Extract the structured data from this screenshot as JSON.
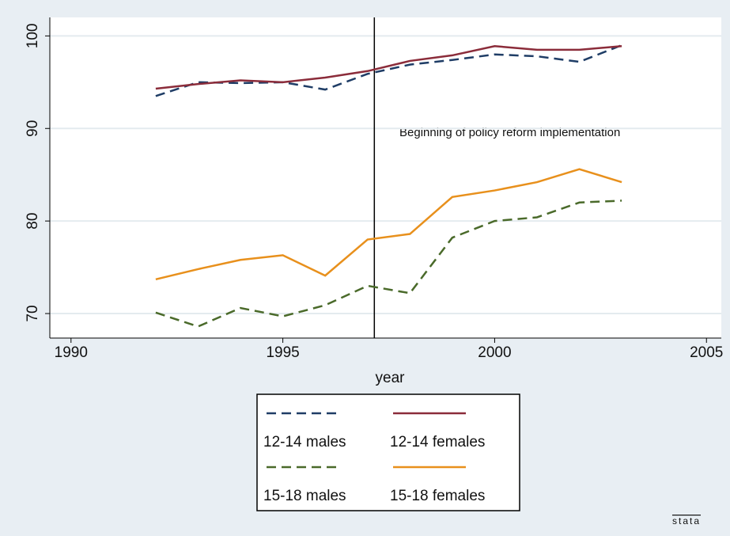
{
  "chart_data": {
    "type": "line",
    "x": [
      1992,
      1993,
      1994,
      1995,
      1996,
      1997,
      1998,
      1999,
      2000,
      2001,
      2002,
      2003
    ],
    "series": [
      {
        "name": "12-14 males",
        "color": "#1f3d66",
        "dash": true,
        "values": [
          93.5,
          95.0,
          94.9,
          95.0,
          94.2,
          95.9,
          96.9,
          97.4,
          98.0,
          97.8,
          97.2,
          99.0
        ]
      },
      {
        "name": "12-14 females",
        "color": "#8b2c3a",
        "dash": false,
        "values": [
          94.3,
          94.8,
          95.2,
          95.0,
          95.5,
          96.2,
          97.3,
          97.9,
          98.9,
          98.5,
          98.5,
          98.9
        ]
      },
      {
        "name": "15-18 males",
        "color": "#4a6a2a",
        "dash": true,
        "values": [
          70.1,
          68.6,
          70.6,
          69.7,
          70.9,
          73.0,
          72.2,
          78.2,
          80.0,
          80.4,
          82.0,
          82.2
        ]
      },
      {
        "name": "15-18 females",
        "color": "#e8901c",
        "dash": false,
        "values": [
          73.7,
          74.8,
          75.8,
          76.3,
          74.1,
          78.0,
          78.6,
          82.6,
          83.3,
          84.2,
          85.6,
          84.2
        ]
      }
    ],
    "xlabel": "year",
    "xlim": [
      1989.5,
      2005.35
    ],
    "xticks": [
      1990,
      1995,
      2000,
      2005
    ],
    "ylim": [
      67.35,
      102
    ],
    "yticks": [
      70,
      80,
      90,
      100
    ],
    "grid": true,
    "xline": 1997.16,
    "annotation": "Beginning of policy reform implementation",
    "watermark": "stata"
  }
}
